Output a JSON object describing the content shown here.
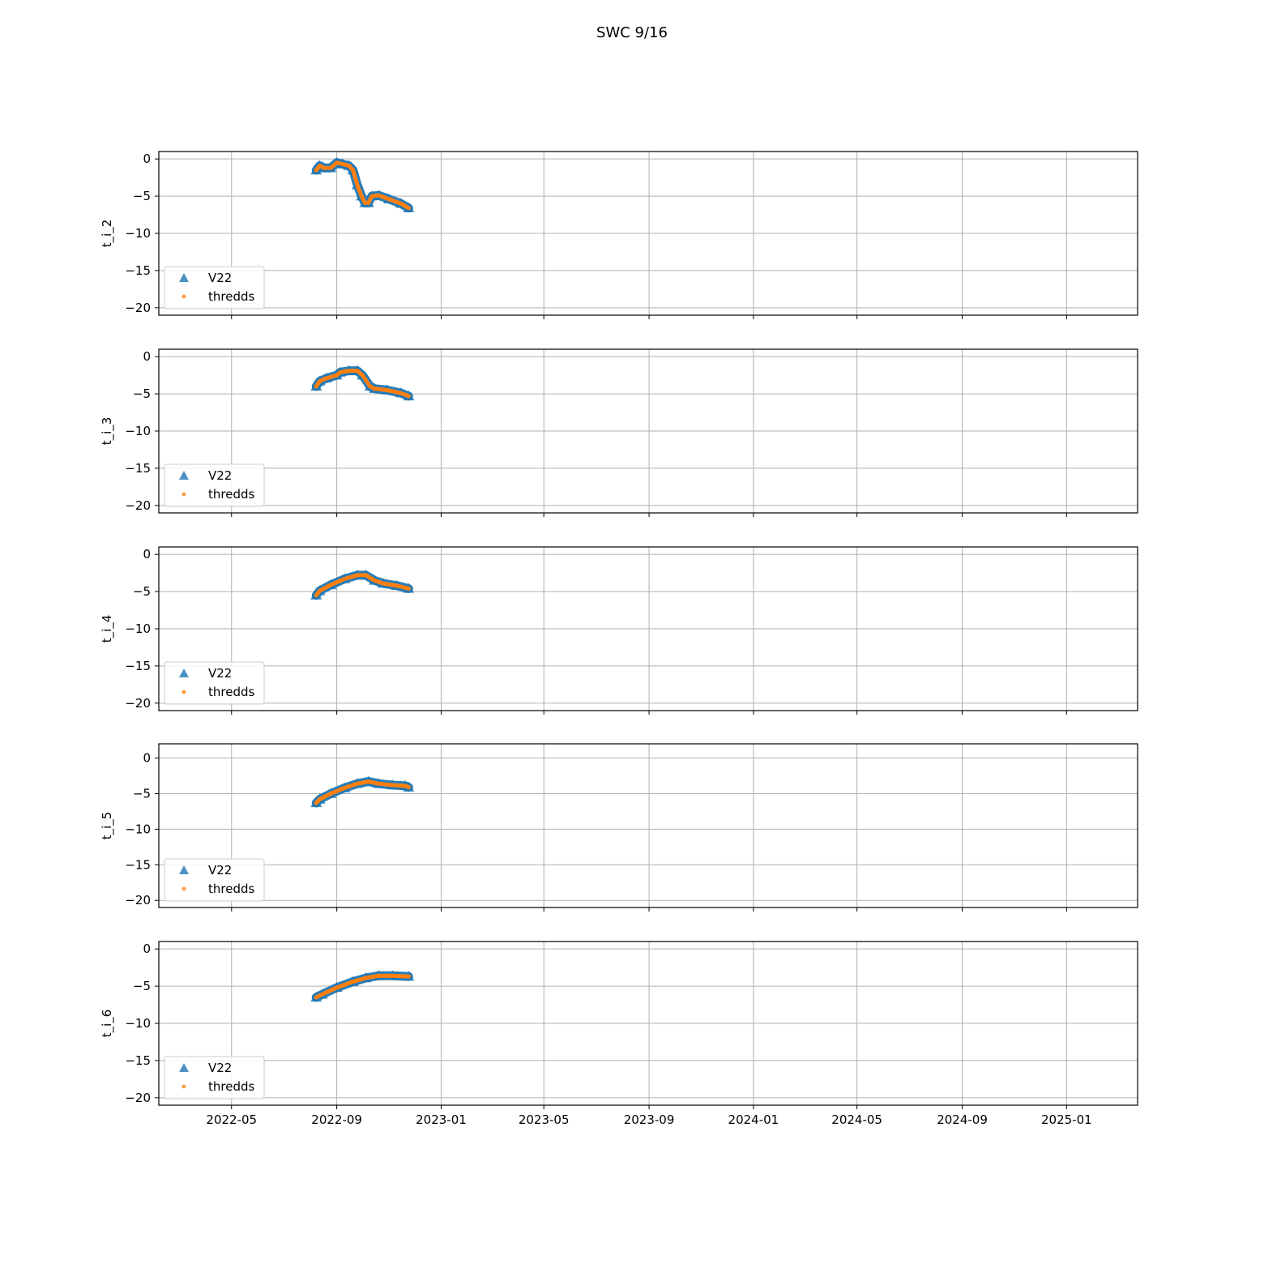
{
  "figure_title": "SWC 9/16",
  "colors": {
    "v22": "#1f77b4",
    "thredds": "#ff7f0e",
    "grid": "#b0b0b0"
  },
  "chart_data": [
    {
      "type": "scatter",
      "ylabel": "t_i_2",
      "xlim": [
        "2022-02-05",
        "2025-03-25"
      ],
      "ylim": [
        -21,
        1
      ],
      "yticks": [
        0,
        -5,
        -10,
        -15,
        -20
      ],
      "xticks": [
        "2022-05",
        "2022-09",
        "2023-01",
        "2023-05",
        "2023-09",
        "2024-01",
        "2024-05",
        "2024-09",
        "2025-01"
      ],
      "show_xtick_labels": false,
      "grid": true,
      "legend": {
        "location": "lower left",
        "entries": [
          "V22",
          "thredds"
        ]
      },
      "series": [
        {
          "name": "V22",
          "marker": "triangle",
          "points": [
            [
              "2022-08-08",
              -1.5
            ],
            [
              "2022-08-12",
              -0.9
            ],
            [
              "2022-08-17",
              -1.2
            ],
            [
              "2022-08-25",
              -1.2
            ],
            [
              "2022-09-01",
              -0.5
            ],
            [
              "2022-09-08",
              -0.7
            ],
            [
              "2022-09-15",
              -0.9
            ],
            [
              "2022-09-20",
              -1.5
            ],
            [
              "2022-09-25",
              -3.5
            ],
            [
              "2022-09-30",
              -5.0
            ],
            [
              "2022-10-04",
              -5.9
            ],
            [
              "2022-10-08",
              -5.9
            ],
            [
              "2022-10-12",
              -5.0
            ],
            [
              "2022-10-20",
              -4.9
            ],
            [
              "2022-11-01",
              -5.4
            ],
            [
              "2022-11-15",
              -6.0
            ],
            [
              "2022-11-24",
              -6.6
            ]
          ]
        },
        {
          "name": "thredds",
          "marker": "dot",
          "points": [
            [
              "2022-08-08",
              -1.5
            ],
            [
              "2022-08-12",
              -0.9
            ],
            [
              "2022-08-17",
              -1.2
            ],
            [
              "2022-08-25",
              -1.2
            ],
            [
              "2022-09-01",
              -0.5
            ],
            [
              "2022-09-08",
              -0.7
            ],
            [
              "2022-09-15",
              -0.9
            ],
            [
              "2022-09-20",
              -1.5
            ],
            [
              "2022-09-25",
              -3.5
            ],
            [
              "2022-09-30",
              -5.0
            ],
            [
              "2022-10-04",
              -5.9
            ],
            [
              "2022-10-08",
              -5.9
            ],
            [
              "2022-10-12",
              -5.0
            ],
            [
              "2022-10-20",
              -4.9
            ],
            [
              "2022-11-01",
              -5.4
            ],
            [
              "2022-11-15",
              -6.0
            ],
            [
              "2022-11-24",
              -6.6
            ]
          ]
        }
      ]
    },
    {
      "type": "scatter",
      "ylabel": "t_i_3",
      "xlim": [
        "2022-02-05",
        "2025-03-25"
      ],
      "ylim": [
        -21,
        1
      ],
      "yticks": [
        0,
        -5,
        -10,
        -15,
        -20
      ],
      "xticks": [
        "2022-05",
        "2022-09",
        "2023-01",
        "2023-05",
        "2023-09",
        "2024-01",
        "2024-05",
        "2024-09",
        "2025-01"
      ],
      "show_xtick_labels": false,
      "grid": true,
      "legend": {
        "location": "lower left",
        "entries": [
          "V22",
          "thredds"
        ]
      },
      "series": [
        {
          "name": "V22",
          "marker": "triangle",
          "points": [
            [
              "2022-08-08",
              -4.0
            ],
            [
              "2022-08-12",
              -3.3
            ],
            [
              "2022-08-20",
              -2.9
            ],
            [
              "2022-09-01",
              -2.5
            ],
            [
              "2022-09-05",
              -2.1
            ],
            [
              "2022-09-15",
              -1.9
            ],
            [
              "2022-09-25",
              -1.9
            ],
            [
              "2022-10-01",
              -2.5
            ],
            [
              "2022-10-10",
              -4.0
            ],
            [
              "2022-10-15",
              -4.3
            ],
            [
              "2022-10-30",
              -4.5
            ],
            [
              "2022-11-15",
              -4.9
            ],
            [
              "2022-11-24",
              -5.3
            ]
          ]
        },
        {
          "name": "thredds",
          "marker": "dot",
          "points": [
            [
              "2022-08-08",
              -4.0
            ],
            [
              "2022-08-12",
              -3.3
            ],
            [
              "2022-08-20",
              -2.9
            ],
            [
              "2022-09-01",
              -2.5
            ],
            [
              "2022-09-05",
              -2.1
            ],
            [
              "2022-09-15",
              -1.9
            ],
            [
              "2022-09-25",
              -1.9
            ],
            [
              "2022-10-01",
              -2.5
            ],
            [
              "2022-10-10",
              -4.0
            ],
            [
              "2022-10-15",
              -4.3
            ],
            [
              "2022-10-30",
              -4.5
            ],
            [
              "2022-11-15",
              -4.9
            ],
            [
              "2022-11-24",
              -5.3
            ]
          ]
        }
      ]
    },
    {
      "type": "scatter",
      "ylabel": "t_i_4",
      "xlim": [
        "2022-02-05",
        "2025-03-25"
      ],
      "ylim": [
        -21,
        1
      ],
      "yticks": [
        0,
        -5,
        -10,
        -15,
        -20
      ],
      "xticks": [
        "2022-05",
        "2022-09",
        "2023-01",
        "2023-05",
        "2023-09",
        "2024-01",
        "2024-05",
        "2024-09",
        "2025-01"
      ],
      "show_xtick_labels": false,
      "grid": true,
      "legend": {
        "location": "lower left",
        "entries": [
          "V22",
          "thredds"
        ]
      },
      "series": [
        {
          "name": "V22",
          "marker": "triangle",
          "points": [
            [
              "2022-08-08",
              -5.5
            ],
            [
              "2022-08-12",
              -4.9
            ],
            [
              "2022-08-25",
              -4.1
            ],
            [
              "2022-09-10",
              -3.3
            ],
            [
              "2022-09-25",
              -2.8
            ],
            [
              "2022-10-05",
              -2.8
            ],
            [
              "2022-10-15",
              -3.5
            ],
            [
              "2022-10-25",
              -3.9
            ],
            [
              "2022-11-10",
              -4.2
            ],
            [
              "2022-11-24",
              -4.6
            ]
          ]
        },
        {
          "name": "thredds",
          "marker": "dot",
          "points": [
            [
              "2022-08-08",
              -5.5
            ],
            [
              "2022-08-12",
              -4.9
            ],
            [
              "2022-08-25",
              -4.1
            ],
            [
              "2022-09-10",
              -3.3
            ],
            [
              "2022-09-25",
              -2.8
            ],
            [
              "2022-10-05",
              -2.8
            ],
            [
              "2022-10-15",
              -3.5
            ],
            [
              "2022-10-25",
              -3.9
            ],
            [
              "2022-11-10",
              -4.2
            ],
            [
              "2022-11-24",
              -4.6
            ]
          ]
        }
      ]
    },
    {
      "type": "scatter",
      "ylabel": "t_i_5",
      "xlim": [
        "2022-02-05",
        "2025-03-25"
      ],
      "ylim": [
        -21,
        2
      ],
      "yticks": [
        0,
        -5,
        -10,
        -15,
        -20
      ],
      "xticks": [
        "2022-05",
        "2022-09",
        "2023-01",
        "2023-05",
        "2023-09",
        "2024-01",
        "2024-05",
        "2024-09",
        "2025-01"
      ],
      "show_xtick_labels": false,
      "grid": true,
      "legend": {
        "location": "lower left",
        "entries": [
          "V22",
          "thredds"
        ]
      },
      "series": [
        {
          "name": "V22",
          "marker": "triangle",
          "points": [
            [
              "2022-08-08",
              -6.3
            ],
            [
              "2022-08-12",
              -5.8
            ],
            [
              "2022-08-25",
              -5.0
            ],
            [
              "2022-09-10",
              -4.2
            ],
            [
              "2022-09-25",
              -3.6
            ],
            [
              "2022-10-08",
              -3.3
            ],
            [
              "2022-10-20",
              -3.6
            ],
            [
              "2022-11-05",
              -3.8
            ],
            [
              "2022-11-20",
              -3.9
            ],
            [
              "2022-11-24",
              -4.1
            ]
          ]
        },
        {
          "name": "thredds",
          "marker": "dot",
          "points": [
            [
              "2022-08-08",
              -6.3
            ],
            [
              "2022-08-12",
              -5.8
            ],
            [
              "2022-08-25",
              -5.0
            ],
            [
              "2022-09-10",
              -4.2
            ],
            [
              "2022-09-25",
              -3.6
            ],
            [
              "2022-10-08",
              -3.3
            ],
            [
              "2022-10-20",
              -3.6
            ],
            [
              "2022-11-05",
              -3.8
            ],
            [
              "2022-11-20",
              -3.9
            ],
            [
              "2022-11-24",
              -4.1
            ]
          ]
        }
      ]
    },
    {
      "type": "scatter",
      "ylabel": "t_i_6",
      "xlim": [
        "2022-02-05",
        "2025-03-25"
      ],
      "ylim": [
        -21,
        1
      ],
      "yticks": [
        0,
        -5,
        -10,
        -15,
        -20
      ],
      "xticks": [
        "2022-05",
        "2022-09",
        "2023-01",
        "2023-05",
        "2023-09",
        "2024-01",
        "2024-05",
        "2024-09",
        "2025-01"
      ],
      "show_xtick_labels": true,
      "grid": true,
      "legend": {
        "location": "lower left",
        "entries": [
          "V22",
          "thredds"
        ]
      },
      "series": [
        {
          "name": "V22",
          "marker": "triangle",
          "points": [
            [
              "2022-08-08",
              -6.5
            ],
            [
              "2022-08-15",
              -6.1
            ],
            [
              "2022-09-01",
              -5.2
            ],
            [
              "2022-09-20",
              -4.4
            ],
            [
              "2022-10-05",
              -3.9
            ],
            [
              "2022-10-20",
              -3.6
            ],
            [
              "2022-11-05",
              -3.6
            ],
            [
              "2022-11-24",
              -3.7
            ]
          ]
        },
        {
          "name": "thredds",
          "marker": "dot",
          "points": [
            [
              "2022-08-08",
              -6.5
            ],
            [
              "2022-08-15",
              -6.1
            ],
            [
              "2022-09-01",
              -5.2
            ],
            [
              "2022-09-20",
              -4.4
            ],
            [
              "2022-10-05",
              -3.9
            ],
            [
              "2022-10-20",
              -3.6
            ],
            [
              "2022-11-05",
              -3.6
            ],
            [
              "2022-11-24",
              -3.7
            ]
          ]
        }
      ]
    }
  ]
}
